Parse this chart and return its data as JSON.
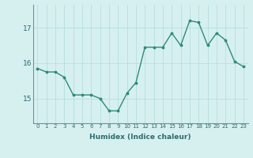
{
  "x": [
    0,
    1,
    2,
    3,
    4,
    5,
    6,
    7,
    8,
    9,
    10,
    11,
    12,
    13,
    14,
    15,
    16,
    17,
    18,
    19,
    20,
    21,
    22,
    23
  ],
  "y": [
    15.85,
    15.75,
    15.75,
    15.6,
    15.1,
    15.1,
    15.1,
    15.0,
    14.65,
    14.65,
    15.15,
    15.45,
    16.45,
    16.45,
    16.45,
    16.85,
    16.5,
    17.2,
    17.15,
    16.5,
    16.85,
    16.65,
    16.05,
    15.9
  ],
  "xlabel": "Humidex (Indice chaleur)",
  "yticks": [
    15,
    16,
    17
  ],
  "xtick_labels": [
    "0",
    "1",
    "2",
    "3",
    "4",
    "5",
    "6",
    "7",
    "8",
    "9",
    "10",
    "11",
    "12",
    "13",
    "14",
    "15",
    "16",
    "17",
    "18",
    "19",
    "20",
    "21",
    "22",
    "23"
  ],
  "line_color": "#2e8b7a",
  "marker_color": "#2e8b7a",
  "bg_color": "#d6f0f0",
  "grid_color": "#b8dede",
  "ylim": [
    14.3,
    17.65
  ],
  "xlim": [
    -0.5,
    23.5
  ]
}
